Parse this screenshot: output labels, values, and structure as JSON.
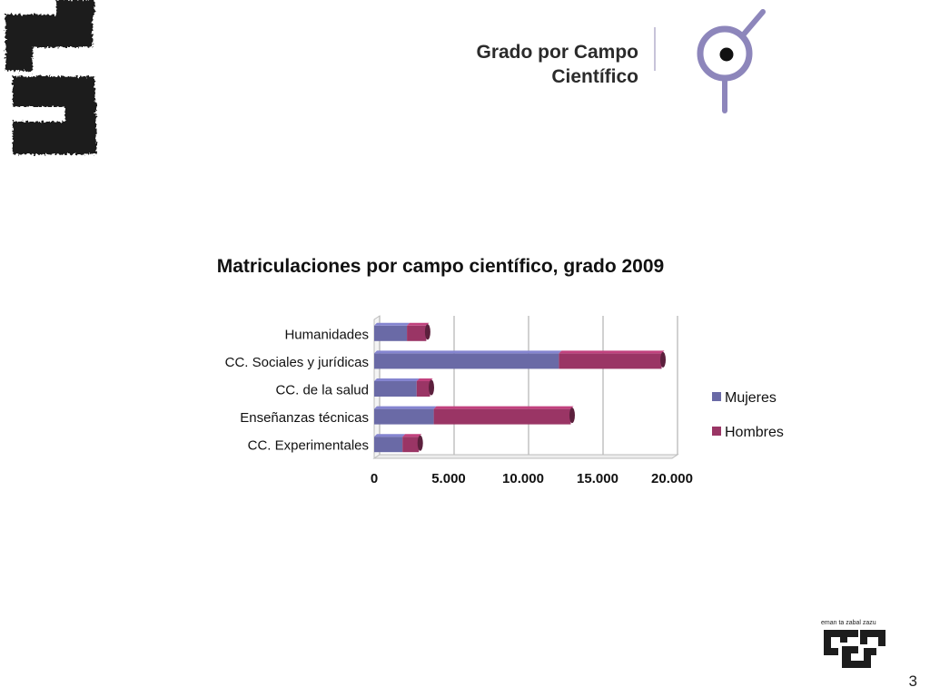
{
  "header": {
    "title_line1": "Grado por Campo",
    "title_line2": "Científico"
  },
  "footer": {
    "logo_motto": "eman ta zabal zazu",
    "page_number": "3"
  },
  "colors": {
    "mujeres": "#6a6aa6",
    "hombres": "#9a3565",
    "accent": "#8d86bb"
  },
  "chart_data": {
    "type": "bar",
    "orientation": "horizontal",
    "stacked": true,
    "title": "Matriculaciones por campo científico, grado 2009",
    "categories": [
      "Humanidades",
      "CC. Sociales y jurídicas",
      "CC. de la salud",
      "Enseñanzas técnicas",
      "CC. Experimentales"
    ],
    "series": [
      {
        "name": "Mujeres",
        "values": [
          2200,
          12400,
          2850,
          4000,
          1900
        ],
        "color": "#6a6aa6"
      },
      {
        "name": "Hombres",
        "values": [
          1300,
          6900,
          900,
          9200,
          1100
        ],
        "color": "#9a3565"
      }
    ],
    "xlim": [
      0,
      20000
    ],
    "xticks": [
      "0",
      "5.000",
      "10.000",
      "15.000",
      "20.000"
    ],
    "xtick_values": [
      0,
      5000,
      10000,
      15000,
      20000
    ],
    "grid": true,
    "legend": "right"
  }
}
